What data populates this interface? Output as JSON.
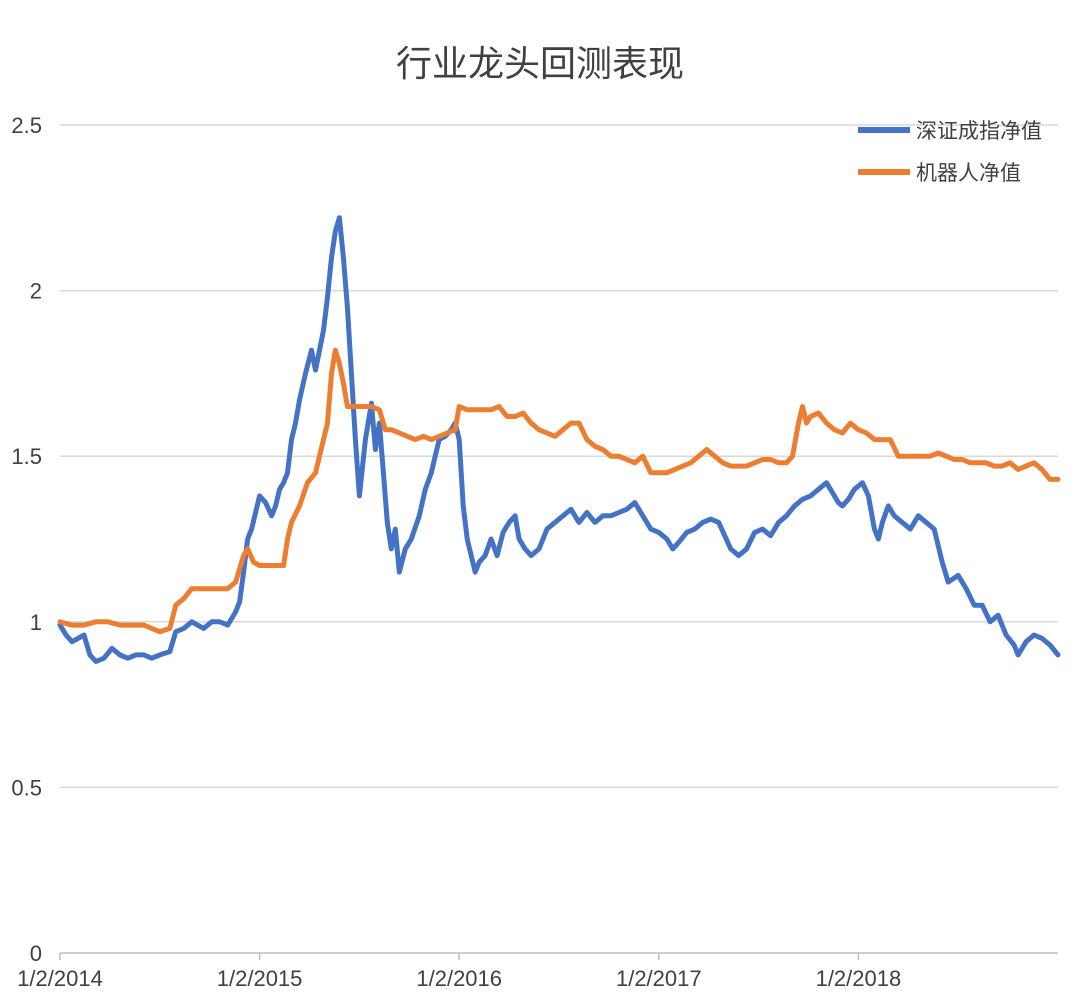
{
  "chart_data": {
    "type": "line",
    "title": "行业龙头回测表现",
    "xlabel": "",
    "ylabel": "",
    "x_tick_labels": [
      "1/2/2014",
      "1/2/2015",
      "1/2/2016",
      "1/2/2017",
      "1/2/2018"
    ],
    "x_ticks": [
      2014.0,
      2015.0,
      2016.0,
      2017.0,
      2018.0
    ],
    "xlim": [
      2014.0,
      2019.0
    ],
    "y_ticks": [
      0,
      0.5,
      1,
      1.5,
      2,
      2.5
    ],
    "y_tick_labels": [
      "0",
      "0.5",
      "1",
      "1.5",
      "2",
      "2.5"
    ],
    "ylim": [
      0,
      2.5
    ],
    "grid": "horizontal",
    "legend_position": "top-right",
    "series": [
      {
        "name": "深证成指净值",
        "color": "#4472C4",
        "points": [
          [
            2014.0,
            0.99
          ],
          [
            2014.03,
            0.96
          ],
          [
            2014.06,
            0.94
          ],
          [
            2014.09,
            0.95
          ],
          [
            2014.12,
            0.96
          ],
          [
            2014.15,
            0.9
          ],
          [
            2014.18,
            0.88
          ],
          [
            2014.22,
            0.89
          ],
          [
            2014.26,
            0.92
          ],
          [
            2014.3,
            0.9
          ],
          [
            2014.34,
            0.89
          ],
          [
            2014.38,
            0.9
          ],
          [
            2014.42,
            0.9
          ],
          [
            2014.46,
            0.89
          ],
          [
            2014.5,
            0.9
          ],
          [
            2014.55,
            0.91
          ],
          [
            2014.58,
            0.97
          ],
          [
            2014.62,
            0.98
          ],
          [
            2014.66,
            1.0
          ],
          [
            2014.72,
            0.98
          ],
          [
            2014.76,
            1.0
          ],
          [
            2014.8,
            1.0
          ],
          [
            2014.84,
            0.99
          ],
          [
            2014.88,
            1.03
          ],
          [
            2014.9,
            1.06
          ],
          [
            2014.92,
            1.15
          ],
          [
            2014.94,
            1.25
          ],
          [
            2014.96,
            1.28
          ],
          [
            2014.98,
            1.33
          ],
          [
            2015.0,
            1.38
          ],
          [
            2015.03,
            1.36
          ],
          [
            2015.06,
            1.32
          ],
          [
            2015.08,
            1.35
          ],
          [
            2015.1,
            1.4
          ],
          [
            2015.12,
            1.42
          ],
          [
            2015.14,
            1.45
          ],
          [
            2015.16,
            1.55
          ],
          [
            2015.18,
            1.6
          ],
          [
            2015.2,
            1.67
          ],
          [
            2015.23,
            1.75
          ],
          [
            2015.26,
            1.82
          ],
          [
            2015.28,
            1.76
          ],
          [
            2015.3,
            1.82
          ],
          [
            2015.32,
            1.88
          ],
          [
            2015.34,
            1.98
          ],
          [
            2015.36,
            2.1
          ],
          [
            2015.38,
            2.18
          ],
          [
            2015.4,
            2.22
          ],
          [
            2015.42,
            2.1
          ],
          [
            2015.44,
            1.95
          ],
          [
            2015.46,
            1.75
          ],
          [
            2015.48,
            1.55
          ],
          [
            2015.5,
            1.38
          ],
          [
            2015.53,
            1.55
          ],
          [
            2015.56,
            1.66
          ],
          [
            2015.58,
            1.52
          ],
          [
            2015.6,
            1.6
          ],
          [
            2015.62,
            1.45
          ],
          [
            2015.64,
            1.3
          ],
          [
            2015.66,
            1.22
          ],
          [
            2015.68,
            1.28
          ],
          [
            2015.7,
            1.15
          ],
          [
            2015.73,
            1.22
          ],
          [
            2015.76,
            1.25
          ],
          [
            2015.8,
            1.32
          ],
          [
            2015.83,
            1.4
          ],
          [
            2015.86,
            1.45
          ],
          [
            2015.88,
            1.5
          ],
          [
            2015.9,
            1.55
          ],
          [
            2015.93,
            1.56
          ],
          [
            2015.96,
            1.58
          ],
          [
            2015.98,
            1.6
          ],
          [
            2016.0,
            1.55
          ],
          [
            2016.02,
            1.35
          ],
          [
            2016.04,
            1.25
          ],
          [
            2016.06,
            1.2
          ],
          [
            2016.08,
            1.15
          ],
          [
            2016.1,
            1.18
          ],
          [
            2016.13,
            1.2
          ],
          [
            2016.16,
            1.25
          ],
          [
            2016.19,
            1.2
          ],
          [
            2016.22,
            1.27
          ],
          [
            2016.25,
            1.3
          ],
          [
            2016.28,
            1.32
          ],
          [
            2016.3,
            1.25
          ],
          [
            2016.33,
            1.22
          ],
          [
            2016.36,
            1.2
          ],
          [
            2016.4,
            1.22
          ],
          [
            2016.44,
            1.28
          ],
          [
            2016.48,
            1.3
          ],
          [
            2016.52,
            1.32
          ],
          [
            2016.56,
            1.34
          ],
          [
            2016.6,
            1.3
          ],
          [
            2016.64,
            1.33
          ],
          [
            2016.68,
            1.3
          ],
          [
            2016.72,
            1.32
          ],
          [
            2016.76,
            1.32
          ],
          [
            2016.8,
            1.33
          ],
          [
            2016.84,
            1.34
          ],
          [
            2016.88,
            1.36
          ],
          [
            2016.92,
            1.32
          ],
          [
            2016.96,
            1.28
          ],
          [
            2017.0,
            1.27
          ],
          [
            2017.04,
            1.25
          ],
          [
            2017.07,
            1.22
          ],
          [
            2017.1,
            1.24
          ],
          [
            2017.14,
            1.27
          ],
          [
            2017.18,
            1.28
          ],
          [
            2017.22,
            1.3
          ],
          [
            2017.26,
            1.31
          ],
          [
            2017.3,
            1.3
          ],
          [
            2017.33,
            1.26
          ],
          [
            2017.36,
            1.22
          ],
          [
            2017.4,
            1.2
          ],
          [
            2017.44,
            1.22
          ],
          [
            2017.48,
            1.27
          ],
          [
            2017.52,
            1.28
          ],
          [
            2017.56,
            1.26
          ],
          [
            2017.6,
            1.3
          ],
          [
            2017.64,
            1.32
          ],
          [
            2017.68,
            1.35
          ],
          [
            2017.72,
            1.37
          ],
          [
            2017.76,
            1.38
          ],
          [
            2017.8,
            1.4
          ],
          [
            2017.84,
            1.42
          ],
          [
            2017.88,
            1.38
          ],
          [
            2017.9,
            1.36
          ],
          [
            2017.92,
            1.35
          ],
          [
            2017.95,
            1.37
          ],
          [
            2017.98,
            1.4
          ],
          [
            2018.02,
            1.42
          ],
          [
            2018.05,
            1.38
          ],
          [
            2018.08,
            1.28
          ],
          [
            2018.1,
            1.25
          ],
          [
            2018.12,
            1.3
          ],
          [
            2018.15,
            1.35
          ],
          [
            2018.18,
            1.32
          ],
          [
            2018.22,
            1.3
          ],
          [
            2018.26,
            1.28
          ],
          [
            2018.3,
            1.32
          ],
          [
            2018.34,
            1.3
          ],
          [
            2018.38,
            1.28
          ],
          [
            2018.42,
            1.18
          ],
          [
            2018.45,
            1.12
          ],
          [
            2018.5,
            1.14
          ],
          [
            2018.54,
            1.1
          ],
          [
            2018.58,
            1.05
          ],
          [
            2018.62,
            1.05
          ],
          [
            2018.66,
            1.0
          ],
          [
            2018.7,
            1.02
          ],
          [
            2018.74,
            0.96
          ],
          [
            2018.78,
            0.93
          ],
          [
            2018.8,
            0.9
          ],
          [
            2018.84,
            0.94
          ],
          [
            2018.88,
            0.96
          ],
          [
            2018.92,
            0.95
          ],
          [
            2018.96,
            0.93
          ],
          [
            2019.0,
            0.9
          ]
        ]
      },
      {
        "name": "机器人净值",
        "color": "#ED7D31",
        "points": [
          [
            2014.0,
            1.0
          ],
          [
            2014.06,
            0.99
          ],
          [
            2014.12,
            0.99
          ],
          [
            2014.18,
            1.0
          ],
          [
            2014.24,
            1.0
          ],
          [
            2014.3,
            0.99
          ],
          [
            2014.36,
            0.99
          ],
          [
            2014.42,
            0.99
          ],
          [
            2014.46,
            0.98
          ],
          [
            2014.5,
            0.97
          ],
          [
            2014.55,
            0.98
          ],
          [
            2014.58,
            1.05
          ],
          [
            2014.62,
            1.07
          ],
          [
            2014.66,
            1.1
          ],
          [
            2014.72,
            1.1
          ],
          [
            2014.78,
            1.1
          ],
          [
            2014.84,
            1.1
          ],
          [
            2014.88,
            1.12
          ],
          [
            2014.92,
            1.2
          ],
          [
            2014.94,
            1.22
          ],
          [
            2014.97,
            1.18
          ],
          [
            2015.0,
            1.17
          ],
          [
            2015.04,
            1.17
          ],
          [
            2015.08,
            1.17
          ],
          [
            2015.12,
            1.17
          ],
          [
            2015.14,
            1.25
          ],
          [
            2015.16,
            1.3
          ],
          [
            2015.2,
            1.35
          ],
          [
            2015.24,
            1.42
          ],
          [
            2015.28,
            1.45
          ],
          [
            2015.3,
            1.5
          ],
          [
            2015.32,
            1.55
          ],
          [
            2015.34,
            1.6
          ],
          [
            2015.36,
            1.75
          ],
          [
            2015.38,
            1.82
          ],
          [
            2015.4,
            1.78
          ],
          [
            2015.42,
            1.72
          ],
          [
            2015.44,
            1.65
          ],
          [
            2015.48,
            1.65
          ],
          [
            2015.52,
            1.65
          ],
          [
            2015.56,
            1.65
          ],
          [
            2015.6,
            1.64
          ],
          [
            2015.63,
            1.58
          ],
          [
            2015.66,
            1.58
          ],
          [
            2015.7,
            1.57
          ],
          [
            2015.74,
            1.56
          ],
          [
            2015.78,
            1.55
          ],
          [
            2015.82,
            1.56
          ],
          [
            2015.86,
            1.55
          ],
          [
            2015.9,
            1.56
          ],
          [
            2015.94,
            1.57
          ],
          [
            2015.98,
            1.58
          ],
          [
            2016.0,
            1.65
          ],
          [
            2016.04,
            1.64
          ],
          [
            2016.08,
            1.64
          ],
          [
            2016.12,
            1.64
          ],
          [
            2016.16,
            1.64
          ],
          [
            2016.2,
            1.65
          ],
          [
            2016.24,
            1.62
          ],
          [
            2016.28,
            1.62
          ],
          [
            2016.32,
            1.63
          ],
          [
            2016.36,
            1.6
          ],
          [
            2016.4,
            1.58
          ],
          [
            2016.44,
            1.57
          ],
          [
            2016.48,
            1.56
          ],
          [
            2016.52,
            1.58
          ],
          [
            2016.56,
            1.6
          ],
          [
            2016.6,
            1.6
          ],
          [
            2016.64,
            1.55
          ],
          [
            2016.68,
            1.53
          ],
          [
            2016.72,
            1.52
          ],
          [
            2016.76,
            1.5
          ],
          [
            2016.8,
            1.5
          ],
          [
            2016.84,
            1.49
          ],
          [
            2016.88,
            1.48
          ],
          [
            2016.92,
            1.5
          ],
          [
            2016.96,
            1.45
          ],
          [
            2017.0,
            1.45
          ],
          [
            2017.04,
            1.45
          ],
          [
            2017.08,
            1.46
          ],
          [
            2017.12,
            1.47
          ],
          [
            2017.16,
            1.48
          ],
          [
            2017.2,
            1.5
          ],
          [
            2017.24,
            1.52
          ],
          [
            2017.28,
            1.5
          ],
          [
            2017.32,
            1.48
          ],
          [
            2017.36,
            1.47
          ],
          [
            2017.4,
            1.47
          ],
          [
            2017.44,
            1.47
          ],
          [
            2017.48,
            1.48
          ],
          [
            2017.52,
            1.49
          ],
          [
            2017.56,
            1.49
          ],
          [
            2017.6,
            1.48
          ],
          [
            2017.64,
            1.48
          ],
          [
            2017.67,
            1.5
          ],
          [
            2017.7,
            1.6
          ],
          [
            2017.72,
            1.65
          ],
          [
            2017.74,
            1.6
          ],
          [
            2017.76,
            1.62
          ],
          [
            2017.8,
            1.63
          ],
          [
            2017.84,
            1.6
          ],
          [
            2017.88,
            1.58
          ],
          [
            2017.92,
            1.57
          ],
          [
            2017.96,
            1.6
          ],
          [
            2018.0,
            1.58
          ],
          [
            2018.04,
            1.57
          ],
          [
            2018.08,
            1.55
          ],
          [
            2018.12,
            1.55
          ],
          [
            2018.16,
            1.55
          ],
          [
            2018.2,
            1.5
          ],
          [
            2018.24,
            1.5
          ],
          [
            2018.28,
            1.5
          ],
          [
            2018.32,
            1.5
          ],
          [
            2018.36,
            1.5
          ],
          [
            2018.4,
            1.51
          ],
          [
            2018.44,
            1.5
          ],
          [
            2018.48,
            1.49
          ],
          [
            2018.52,
            1.49
          ],
          [
            2018.56,
            1.48
          ],
          [
            2018.6,
            1.48
          ],
          [
            2018.64,
            1.48
          ],
          [
            2018.68,
            1.47
          ],
          [
            2018.72,
            1.47
          ],
          [
            2018.76,
            1.48
          ],
          [
            2018.8,
            1.46
          ],
          [
            2018.84,
            1.47
          ],
          [
            2018.88,
            1.48
          ],
          [
            2018.92,
            1.46
          ],
          [
            2018.96,
            1.43
          ],
          [
            2019.0,
            1.43
          ]
        ]
      }
    ]
  }
}
